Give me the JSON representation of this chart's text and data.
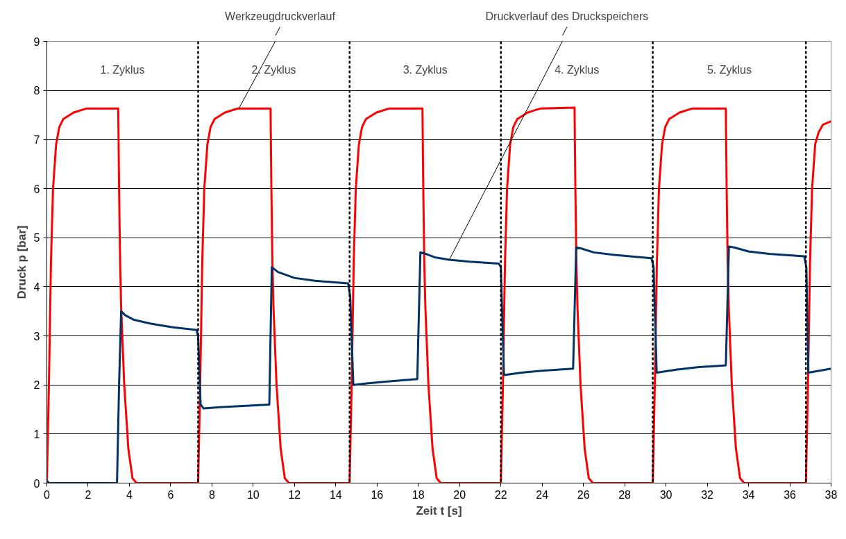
{
  "chart_data": {
    "type": "line",
    "xlabel": "Zeit t [s]",
    "ylabel": "Druck p [bar]",
    "xlim": [
      0,
      38
    ],
    "xticks": [
      0,
      2,
      4,
      6,
      8,
      10,
      12,
      14,
      16,
      18,
      20,
      22,
      24,
      26,
      28,
      30,
      32,
      34,
      36,
      38
    ],
    "ylim": [
      0,
      9
    ],
    "yticks": [
      0,
      1,
      2,
      3,
      4,
      5,
      6,
      7,
      8,
      9
    ],
    "grid": "y",
    "marker": "none",
    "line_style": "solid",
    "series": [
      {
        "color": "#ff0000",
        "x": [
          0,
          0.1,
          0.2,
          0.3,
          0.45,
          0.6,
          0.8,
          1.3,
          1.9,
          3.46,
          3.5,
          3.55,
          3.6,
          3.75,
          3.95,
          4.15,
          4.35,
          7.33,
          7.43,
          7.53,
          7.63,
          7.78,
          7.93,
          8.13,
          8.63,
          9.23,
          10.84,
          10.88,
          10.93,
          10.98,
          11.13,
          11.33,
          11.53,
          11.73,
          14.67,
          14.77,
          14.87,
          14.97,
          15.12,
          15.27,
          15.47,
          15.97,
          16.57,
          18.2,
          18.24,
          18.29,
          18.34,
          18.49,
          18.69,
          18.89,
          19.09,
          22.0,
          22.1,
          22.2,
          22.3,
          22.45,
          22.6,
          22.8,
          23.3,
          23.9,
          25.57,
          25.61,
          25.66,
          25.71,
          25.86,
          26.06,
          26.26,
          26.46,
          29.36,
          29.46,
          29.56,
          29.66,
          29.81,
          29.96,
          30.16,
          30.66,
          31.26,
          32.9,
          32.94,
          32.99,
          33.04,
          33.19,
          33.39,
          33.59,
          33.79,
          36.78,
          36.88,
          36.98,
          37.08,
          37.23,
          37.4,
          37.6,
          38.0
        ],
        "values": [
          0,
          2.0,
          4.5,
          6.0,
          6.9,
          7.25,
          7.42,
          7.55,
          7.63,
          7.63,
          6,
          4.5,
          3.6,
          2.0,
          0.7,
          0.1,
          0,
          0,
          2.0,
          4.5,
          6.0,
          6.9,
          7.25,
          7.42,
          7.55,
          7.63,
          7.63,
          6,
          4.5,
          3.6,
          2.0,
          0.7,
          0.1,
          0,
          0,
          2.0,
          4.5,
          6.0,
          6.9,
          7.25,
          7.42,
          7.55,
          7.63,
          7.63,
          6,
          4.5,
          3.6,
          2.0,
          0.7,
          0.1,
          0,
          0,
          2.0,
          4.5,
          6.0,
          6.9,
          7.25,
          7.42,
          7.55,
          7.63,
          7.65,
          6,
          4.5,
          3.6,
          2.0,
          0.7,
          0.1,
          0,
          0,
          2.0,
          4.5,
          6.0,
          6.9,
          7.25,
          7.42,
          7.55,
          7.63,
          7.63,
          6,
          4.5,
          3.6,
          2.0,
          0.7,
          0.1,
          0,
          0,
          2.0,
          4.5,
          6.0,
          6.9,
          7.15,
          7.3,
          7.37
        ]
      },
      {
        "color": "#003366",
        "x": [
          0,
          0.1,
          3.4,
          3.5,
          3.6,
          3.8,
          4.2,
          5,
          6,
          7.25,
          7.33,
          7.45,
          7.6,
          8.5,
          9.5,
          10.78,
          10.9,
          11.2,
          12,
          13,
          14.6,
          14.7,
          14.85,
          15.5,
          16.5,
          17.95,
          18.1,
          18.3,
          18.8,
          19.5,
          20.5,
          21.9,
          22.0,
          22.15,
          23,
          24,
          25.5,
          25.65,
          25.9,
          26.5,
          27.5,
          29.3,
          29.4,
          29.55,
          30.5,
          31.5,
          32.9,
          33.05,
          33.3,
          34,
          35,
          36.7,
          36.8,
          36.9,
          37.2,
          38
        ],
        "values": [
          0.05,
          0,
          0,
          2.0,
          3.5,
          3.42,
          3.33,
          3.25,
          3.18,
          3.12,
          3.0,
          1.6,
          1.52,
          1.55,
          1.57,
          1.6,
          4.4,
          4.3,
          4.18,
          4.12,
          4.07,
          3.8,
          2.0,
          2.03,
          2.07,
          2.12,
          4.7,
          4.68,
          4.6,
          4.55,
          4.51,
          4.47,
          4.4,
          2.2,
          2.25,
          2.29,
          2.33,
          4.8,
          4.78,
          4.7,
          4.65,
          4.58,
          4.4,
          2.25,
          2.31,
          2.36,
          2.4,
          4.82,
          4.8,
          4.72,
          4.67,
          4.62,
          4.4,
          2.25,
          2.27,
          2.33
        ]
      }
    ],
    "ref_lines": [
      {
        "axis": "x",
        "value": 7.33,
        "color": "#000000",
        "line_style": "dashed"
      },
      {
        "axis": "x",
        "value": 14.67,
        "color": "#000000",
        "line_style": "dashed"
      },
      {
        "axis": "x",
        "value": 22.0,
        "color": "#000000",
        "line_style": "dashed"
      },
      {
        "axis": "x",
        "value": 29.36,
        "color": "#000000",
        "line_style": "dashed"
      },
      {
        "axis": "x",
        "value": 36.78,
        "color": "#000000",
        "line_style": "dashed"
      }
    ],
    "annotations": [
      "1. Zyklus",
      "2. Zyklus",
      "3. Zyklus",
      "4. Zyklus",
      "5. Zyklus",
      {
        "text": "Werkzeugdruckverlauf",
        "x": 9.3,
        "y": 7.63
      },
      {
        "text": "Druckverlauf des Druckspeichers",
        "x": 19.5,
        "y": 4.55
      }
    ]
  }
}
